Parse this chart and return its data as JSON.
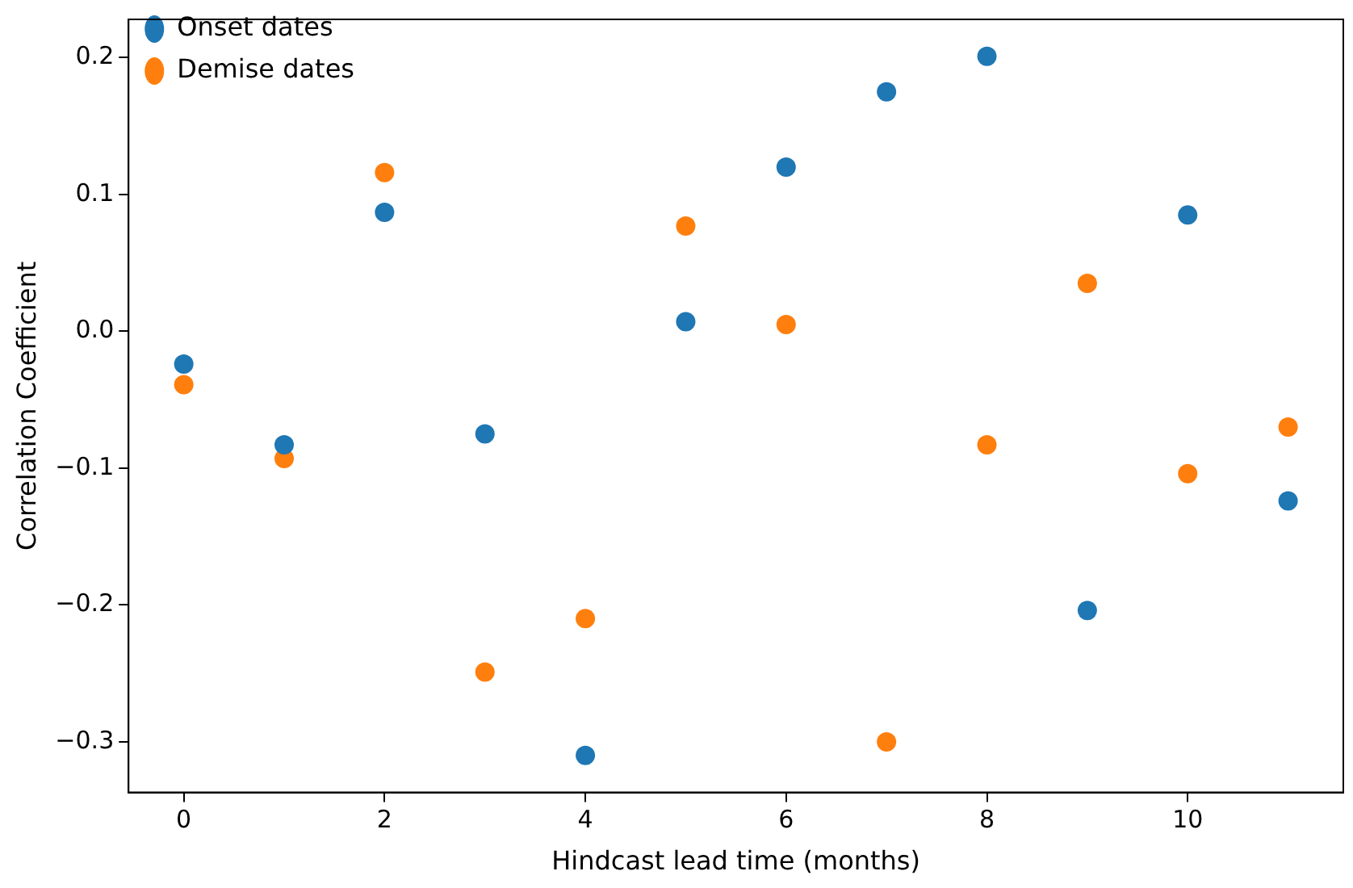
{
  "chart_data": {
    "type": "scatter",
    "xlabel": "Hindcast lead time (months)",
    "ylabel": "Correlation Coefficient",
    "x": [
      0,
      1,
      2,
      3,
      4,
      5,
      6,
      7,
      8,
      9,
      10,
      11
    ],
    "series": [
      {
        "name": "Onset dates",
        "color": "#1f77b4",
        "values": [
          -0.024,
          -0.083,
          0.087,
          -0.075,
          -0.31,
          0.007,
          0.12,
          0.175,
          0.201,
          -0.204,
          0.085,
          -0.124
        ]
      },
      {
        "name": "Demise dates",
        "color": "#ff7f0e",
        "values": [
          -0.039,
          -0.093,
          0.116,
          -0.249,
          -0.21,
          0.077,
          0.005,
          -0.3,
          -0.083,
          0.035,
          -0.104,
          -0.07
        ]
      }
    ],
    "xlim": [
      -0.55,
      11.55
    ],
    "xticks": [
      0,
      2,
      4,
      6,
      8,
      10
    ],
    "ylim": [
      -0.337,
      0.228
    ],
    "yticks": [
      {
        "value": -0.3,
        "label": "−0.3"
      },
      {
        "value": -0.2,
        "label": "−0.2"
      },
      {
        "value": -0.1,
        "label": "−0.1"
      },
      {
        "value": 0,
        "label": "0.0"
      },
      {
        "value": 0.1,
        "label": "0.1"
      },
      {
        "value": 0.2,
        "label": "0.2"
      }
    ],
    "grid": false,
    "legend": "top left",
    "marker": "circle"
  }
}
